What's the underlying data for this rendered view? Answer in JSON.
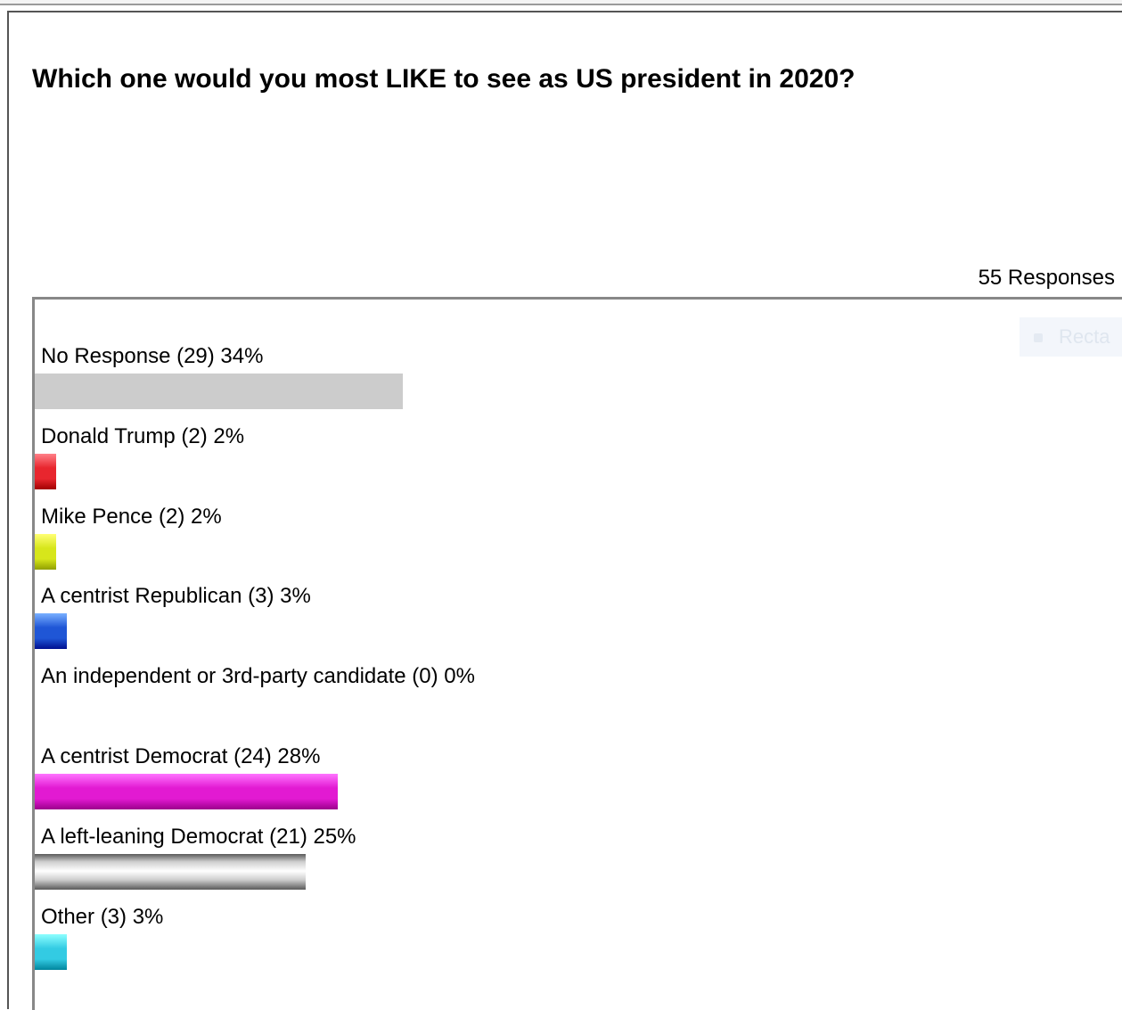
{
  "question": "Which one would you most LIKE to see as US president in 2020?",
  "responses_label": "55 Responses",
  "ghost_widget_text": "Recta",
  "chart_data": {
    "type": "bar",
    "orientation": "horizontal",
    "title": "Which one would you most LIKE to see as US president in 2020?",
    "total_responses": 55,
    "categories": [
      "No Response",
      "Donald Trump",
      "Mike Pence",
      "A centrist Republican",
      "An independent or 3rd-party candidate",
      "A centrist Democrat",
      "A left-leaning Democrat",
      "Other"
    ],
    "counts": [
      29,
      2,
      2,
      3,
      0,
      24,
      21,
      3
    ],
    "percent": [
      34,
      2,
      2,
      3,
      0,
      28,
      25,
      3
    ],
    "labels": [
      "No Response (29) 34%",
      "Donald Trump (2) 2%",
      "Mike Pence (2) 2%",
      "A centrist Republican (3) 3%",
      "An independent or 3rd-party candidate (0) 0%",
      "A centrist Democrat (24) 28%",
      "A left-leaning Democrat (21) 25%",
      "Other (3) 3%"
    ],
    "colors": [
      "#cccccc",
      "#e8262e",
      "#d7e61b",
      "#1f56d6",
      "#ffffff",
      "#e21ad2",
      "#b8b8b8",
      "#33cbe3"
    ],
    "grid": false,
    "legend": "none"
  }
}
